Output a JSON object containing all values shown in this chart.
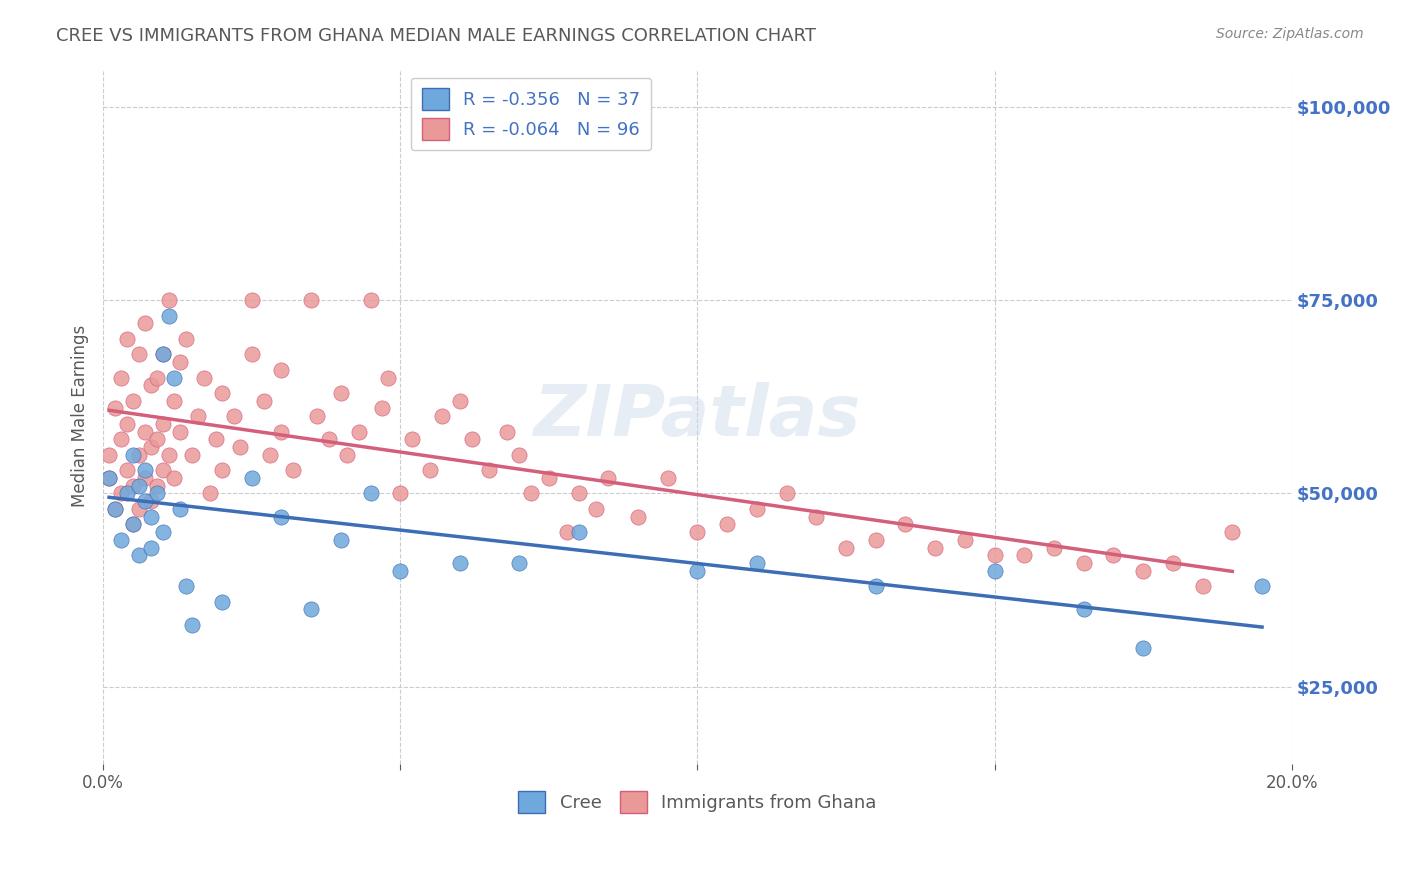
{
  "title": "CREE VS IMMIGRANTS FROM GHANA MEDIAN MALE EARNINGS CORRELATION CHART",
  "source": "Source: ZipAtlas.com",
  "xlabel": "",
  "ylabel": "Median Male Earnings",
  "xlim": [
    0.0,
    0.2
  ],
  "ylim": [
    15000,
    105000
  ],
  "yticks": [
    25000,
    50000,
    75000,
    100000
  ],
  "xticks": [
    0.0,
    0.05,
    0.1,
    0.15,
    0.2
  ],
  "xtick_labels": [
    "0.0%",
    "",
    "",
    "",
    "20.0%"
  ],
  "ytick_labels": [
    "$25,000",
    "$50,000",
    "$75,000",
    "$100,000"
  ],
  "watermark": "ZIPatlas",
  "cree_R": -0.356,
  "cree_N": 37,
  "ghana_R": -0.064,
  "ghana_N": 96,
  "cree_color": "#6fa8dc",
  "ghana_color": "#ea9999",
  "cree_line_color": "#3d6eb5",
  "ghana_line_color": "#d45f7a",
  "legend_box_color": "#ffffff",
  "cree_x": [
    0.001,
    0.002,
    0.003,
    0.004,
    0.005,
    0.005,
    0.006,
    0.006,
    0.007,
    0.007,
    0.008,
    0.008,
    0.009,
    0.01,
    0.01,
    0.011,
    0.012,
    0.013,
    0.014,
    0.015,
    0.02,
    0.025,
    0.03,
    0.035,
    0.04,
    0.045,
    0.05,
    0.06,
    0.07,
    0.08,
    0.1,
    0.11,
    0.13,
    0.15,
    0.165,
    0.175,
    0.195
  ],
  "cree_y": [
    52000,
    48000,
    44000,
    50000,
    46000,
    55000,
    42000,
    51000,
    49000,
    53000,
    47000,
    43000,
    50000,
    45000,
    68000,
    73000,
    65000,
    48000,
    38000,
    33000,
    36000,
    52000,
    47000,
    35000,
    44000,
    50000,
    40000,
    41000,
    41000,
    45000,
    40000,
    41000,
    38000,
    40000,
    35000,
    30000,
    38000
  ],
  "ghana_x": [
    0.001,
    0.001,
    0.002,
    0.002,
    0.003,
    0.003,
    0.003,
    0.004,
    0.004,
    0.004,
    0.005,
    0.005,
    0.005,
    0.006,
    0.006,
    0.006,
    0.007,
    0.007,
    0.007,
    0.008,
    0.008,
    0.008,
    0.009,
    0.009,
    0.009,
    0.01,
    0.01,
    0.01,
    0.011,
    0.011,
    0.012,
    0.012,
    0.013,
    0.013,
    0.014,
    0.015,
    0.016,
    0.017,
    0.018,
    0.019,
    0.02,
    0.02,
    0.022,
    0.023,
    0.025,
    0.025,
    0.027,
    0.028,
    0.03,
    0.03,
    0.032,
    0.035,
    0.036,
    0.038,
    0.04,
    0.041,
    0.043,
    0.045,
    0.047,
    0.048,
    0.05,
    0.052,
    0.055,
    0.057,
    0.06,
    0.062,
    0.065,
    0.068,
    0.07,
    0.072,
    0.075,
    0.078,
    0.08,
    0.083,
    0.085,
    0.09,
    0.095,
    0.1,
    0.105,
    0.11,
    0.115,
    0.12,
    0.125,
    0.13,
    0.135,
    0.14,
    0.145,
    0.15,
    0.155,
    0.16,
    0.165,
    0.17,
    0.175,
    0.18,
    0.185,
    0.19
  ],
  "ghana_y": [
    52000,
    55000,
    48000,
    61000,
    50000,
    57000,
    65000,
    53000,
    59000,
    70000,
    46000,
    51000,
    62000,
    48000,
    55000,
    68000,
    52000,
    58000,
    72000,
    49000,
    56000,
    64000,
    51000,
    57000,
    65000,
    53000,
    59000,
    68000,
    55000,
    75000,
    52000,
    62000,
    58000,
    67000,
    70000,
    55000,
    60000,
    65000,
    50000,
    57000,
    53000,
    63000,
    60000,
    56000,
    68000,
    75000,
    62000,
    55000,
    58000,
    66000,
    53000,
    75000,
    60000,
    57000,
    63000,
    55000,
    58000,
    75000,
    61000,
    65000,
    50000,
    57000,
    53000,
    60000,
    62000,
    57000,
    53000,
    58000,
    55000,
    50000,
    52000,
    45000,
    50000,
    48000,
    52000,
    47000,
    52000,
    45000,
    46000,
    48000,
    50000,
    47000,
    43000,
    44000,
    46000,
    43000,
    44000,
    42000,
    42000,
    43000,
    41000,
    42000,
    40000,
    41000,
    38000,
    45000
  ],
  "background_color": "#ffffff",
  "grid_color": "#cccccc",
  "axis_color": "#4472c4",
  "title_color": "#595959",
  "label_color": "#595959"
}
